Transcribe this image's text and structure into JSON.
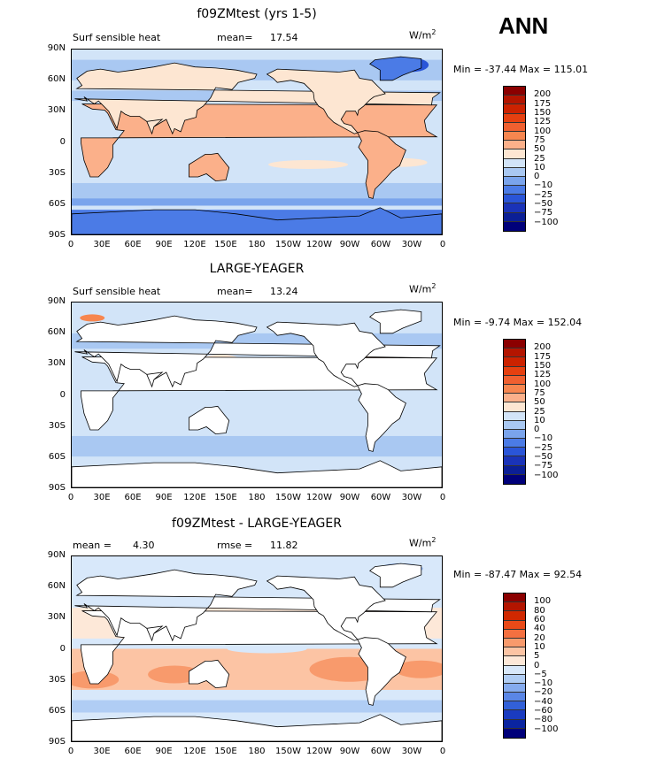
{
  "season": "ANN",
  "chart_data": [
    {
      "type": "heatmap",
      "title": "f09ZMtest (yrs 1-5)",
      "variable_label": "Surf sensible heat",
      "stat_label": "mean=",
      "stat_value": "17.54",
      "units": "W/m",
      "units_sup": "2",
      "minmax": "Min = -37.44  Max = 115.01",
      "x_ticks": [
        "0",
        "30E",
        "60E",
        "90E",
        "120E",
        "150E",
        "180",
        "150W",
        "120W",
        "90W",
        "60W",
        "30W",
        "0"
      ],
      "y_ticks": [
        "90N",
        "60N",
        "30N",
        "0",
        "30S",
        "60S",
        "90S"
      ],
      "levels": [
        "200",
        "175",
        "150",
        "125",
        "100",
        "75",
        "50",
        "25",
        "10",
        "0",
        "-10",
        "-25",
        "-50",
        "-75",
        "-100"
      ],
      "colors": [
        "#8b0000",
        "#b31500",
        "#cc2200",
        "#e64010",
        "#f06030",
        "#f7864f",
        "#fbb08a",
        "#fde6d2",
        "#d2e4f8",
        "#a9c8f2",
        "#7aa4ec",
        "#4b7be6",
        "#2a55d8",
        "#1a33b8",
        "#0b1f96",
        "#00007a"
      ]
    },
    {
      "type": "heatmap",
      "title": "LARGE-YEAGER",
      "variable_label": "Surf sensible heat",
      "stat_label": "mean=",
      "stat_value": "13.24",
      "units": "W/m",
      "units_sup": "2",
      "minmax": "Min =  -9.74  Max = 152.04",
      "x_ticks": [
        "0",
        "30E",
        "60E",
        "90E",
        "120E",
        "150E",
        "180",
        "150W",
        "120W",
        "90W",
        "60W",
        "30W",
        "0"
      ],
      "y_ticks": [
        "90N",
        "60N",
        "30N",
        "0",
        "30S",
        "60S",
        "90S"
      ],
      "levels": [
        "200",
        "175",
        "150",
        "125",
        "100",
        "75",
        "50",
        "25",
        "10",
        "0",
        "-10",
        "-25",
        "-50",
        "-75",
        "-100"
      ],
      "colors": [
        "#8b0000",
        "#b31500",
        "#cc2200",
        "#e64010",
        "#f06030",
        "#f7864f",
        "#fbb08a",
        "#fde6d2",
        "#d2e4f8",
        "#a9c8f2",
        "#7aa4ec",
        "#4b7be6",
        "#2a55d8",
        "#1a33b8",
        "#0b1f96",
        "#00007a"
      ]
    },
    {
      "type": "heatmap",
      "title": "f09ZMtest - LARGE-YEAGER",
      "variable_label": "mean =",
      "stat_label": "rmse =",
      "stat_value": "11.82",
      "mean_value": "4.30",
      "units": "W/m",
      "units_sup": "2",
      "minmax": "Min = -87.47  Max =  92.54",
      "x_ticks": [
        "0",
        "30E",
        "60E",
        "90E",
        "120E",
        "150E",
        "180",
        "150W",
        "120W",
        "90W",
        "60W",
        "30W",
        "0"
      ],
      "y_ticks": [
        "90N",
        "60N",
        "30N",
        "0",
        "30S",
        "60S",
        "90S"
      ],
      "levels": [
        "100",
        "80",
        "60",
        "40",
        "20",
        "10",
        "5",
        "0",
        "-5",
        "-10",
        "-20",
        "-40",
        "-60",
        "-80",
        "-100"
      ],
      "colors": [
        "#8b0000",
        "#b31500",
        "#d02800",
        "#ea4a18",
        "#f47040",
        "#f89a6c",
        "#fcc4a4",
        "#fde8d8",
        "#d8e8fa",
        "#b0cdf4",
        "#85abee",
        "#5a86e6",
        "#3260d8",
        "#1a3bc0",
        "#0a24a0",
        "#00007a"
      ]
    }
  ]
}
